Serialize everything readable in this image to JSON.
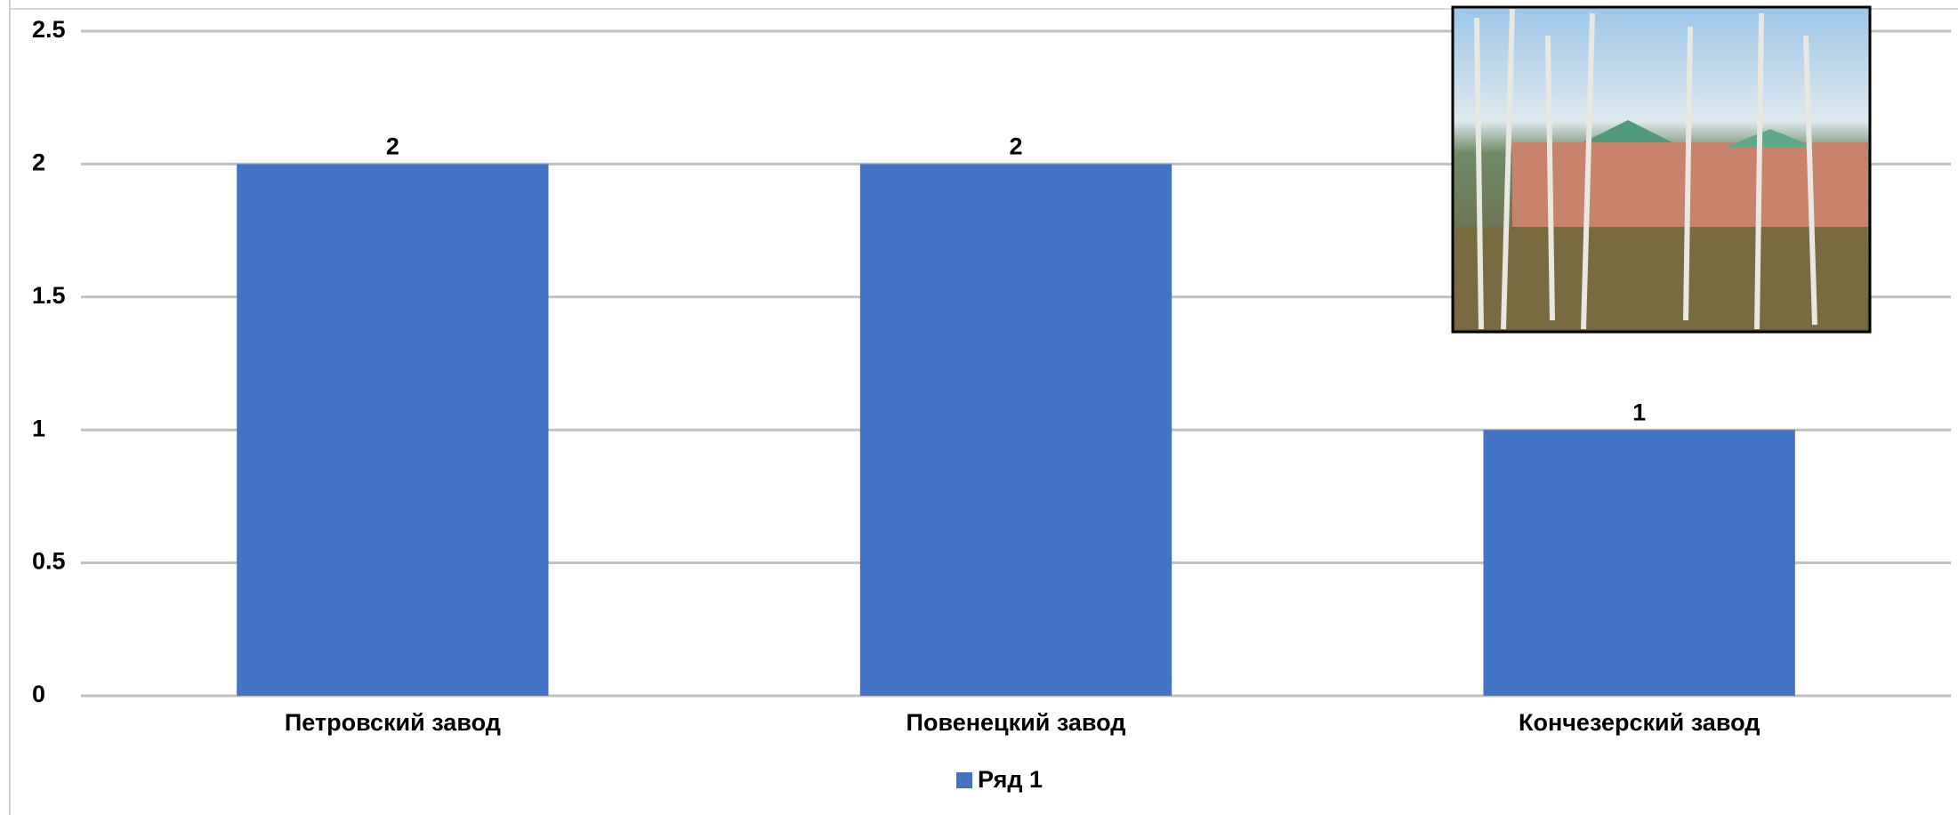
{
  "chart_data": {
    "type": "bar",
    "categories": [
      "Петровский завод",
      "Повенецкий завод",
      "Кончезерский завод"
    ],
    "series": [
      {
        "name": "Ряд 1",
        "color": "#4472c4",
        "values": [
          2,
          2,
          1
        ]
      }
    ],
    "ylim": [
      0,
      2.5
    ],
    "yticks": [
      0,
      0.5,
      1,
      1.5,
      2,
      2.5
    ],
    "grid": true,
    "legend": "bottom"
  }
}
